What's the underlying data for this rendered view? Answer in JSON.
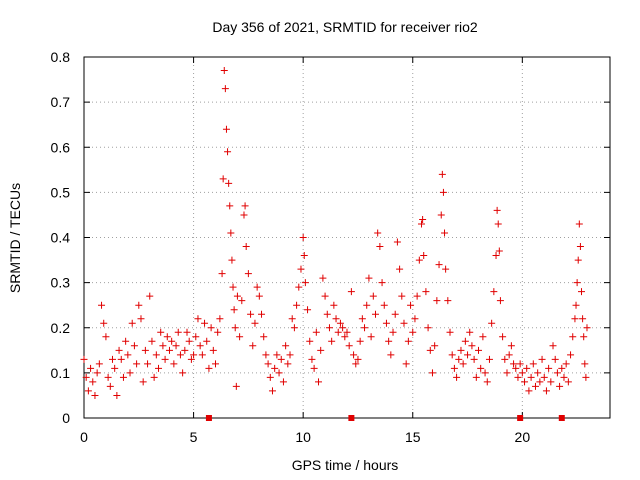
{
  "chart_data": {
    "type": "scatter",
    "title": "Day 356 of 2021, SRMTID for receiver rio2",
    "xlabel": "GPS time / hours",
    "ylabel": "SRMTID / TECUs",
    "xlim": [
      0,
      24
    ],
    "ylim": [
      0,
      0.8
    ],
    "xticks": [
      0,
      5,
      10,
      15,
      20
    ],
    "yticks": [
      0,
      0.1,
      0.2,
      0.3,
      0.4,
      0.5,
      0.6,
      0.7,
      0.8
    ],
    "grid": true,
    "marker": "+",
    "color": "#e00000",
    "series": [
      {
        "name": "SRMTID rio2",
        "points": [
          [
            0.0,
            0.13
          ],
          [
            0.1,
            0.09
          ],
          [
            0.2,
            0.06
          ],
          [
            0.3,
            0.11
          ],
          [
            0.4,
            0.08
          ],
          [
            0.5,
            0.05
          ],
          [
            0.6,
            0.1
          ],
          [
            0.7,
            0.12
          ],
          [
            0.8,
            0.25
          ],
          [
            0.9,
            0.21
          ],
          [
            1.0,
            0.18
          ],
          [
            1.1,
            0.09
          ],
          [
            1.2,
            0.07
          ],
          [
            1.3,
            0.13
          ],
          [
            1.4,
            0.11
          ],
          [
            1.5,
            0.05
          ],
          [
            1.6,
            0.15
          ],
          [
            1.7,
            0.13
          ],
          [
            1.8,
            0.09
          ],
          [
            1.9,
            0.17
          ],
          [
            2.0,
            0.14
          ],
          [
            2.1,
            0.1
          ],
          [
            2.2,
            0.21
          ],
          [
            2.3,
            0.16
          ],
          [
            2.4,
            0.12
          ],
          [
            2.5,
            0.25
          ],
          [
            2.6,
            0.22
          ],
          [
            2.7,
            0.08
          ],
          [
            2.8,
            0.15
          ],
          [
            2.9,
            0.12
          ],
          [
            3.0,
            0.27
          ],
          [
            3.1,
            0.17
          ],
          [
            3.2,
            0.09
          ],
          [
            3.3,
            0.14
          ],
          [
            3.4,
            0.11
          ],
          [
            3.5,
            0.19
          ],
          [
            3.6,
            0.16
          ],
          [
            3.7,
            0.13
          ],
          [
            3.8,
            0.18
          ],
          [
            3.9,
            0.15
          ],
          [
            4.0,
            0.17
          ],
          [
            4.1,
            0.12
          ],
          [
            4.2,
            0.16
          ],
          [
            4.3,
            0.19
          ],
          [
            4.4,
            0.14
          ],
          [
            4.5,
            0.1
          ],
          [
            4.6,
            0.15
          ],
          [
            4.7,
            0.19
          ],
          [
            4.8,
            0.17
          ],
          [
            4.9,
            0.13
          ],
          [
            5.0,
            0.14
          ],
          [
            5.1,
            0.18
          ],
          [
            5.2,
            0.22
          ],
          [
            5.3,
            0.16
          ],
          [
            5.4,
            0.14
          ],
          [
            5.5,
            0.21
          ],
          [
            5.6,
            0.17
          ],
          [
            5.7,
            0.11
          ],
          [
            5.8,
            0.2
          ],
          [
            5.9,
            0.15
          ],
          [
            6.0,
            0.12
          ],
          [
            6.1,
            0.19
          ],
          [
            6.2,
            0.22
          ],
          [
            6.3,
            0.32
          ],
          [
            6.35,
            0.53
          ],
          [
            6.4,
            0.77
          ],
          [
            6.45,
            0.73
          ],
          [
            6.5,
            0.64
          ],
          [
            6.55,
            0.59
          ],
          [
            6.6,
            0.52
          ],
          [
            6.65,
            0.47
          ],
          [
            6.7,
            0.41
          ],
          [
            6.75,
            0.35
          ],
          [
            6.8,
            0.29
          ],
          [
            6.85,
            0.24
          ],
          [
            6.9,
            0.2
          ],
          [
            6.95,
            0.07
          ],
          [
            7.0,
            0.27
          ],
          [
            7.1,
            0.18
          ],
          [
            7.2,
            0.26
          ],
          [
            7.3,
            0.45
          ],
          [
            7.35,
            0.47
          ],
          [
            7.4,
            0.38
          ],
          [
            7.5,
            0.32
          ],
          [
            7.6,
            0.23
          ],
          [
            7.7,
            0.16
          ],
          [
            7.8,
            0.21
          ],
          [
            7.9,
            0.29
          ],
          [
            8.0,
            0.27
          ],
          [
            8.1,
            0.23
          ],
          [
            8.2,
            0.18
          ],
          [
            8.3,
            0.14
          ],
          [
            8.4,
            0.12
          ],
          [
            8.5,
            0.09
          ],
          [
            8.6,
            0.06
          ],
          [
            8.7,
            0.11
          ],
          [
            8.8,
            0.14
          ],
          [
            8.9,
            0.1
          ],
          [
            9.0,
            0.13
          ],
          [
            9.1,
            0.08
          ],
          [
            9.2,
            0.16
          ],
          [
            9.3,
            0.12
          ],
          [
            9.4,
            0.14
          ],
          [
            9.5,
            0.22
          ],
          [
            9.6,
            0.2
          ],
          [
            9.7,
            0.25
          ],
          [
            9.8,
            0.29
          ],
          [
            9.9,
            0.33
          ],
          [
            10.0,
            0.4
          ],
          [
            10.05,
            0.36
          ],
          [
            10.1,
            0.3
          ],
          [
            10.2,
            0.24
          ],
          [
            10.3,
            0.17
          ],
          [
            10.4,
            0.13
          ],
          [
            10.5,
            0.11
          ],
          [
            10.6,
            0.19
          ],
          [
            10.7,
            0.08
          ],
          [
            10.8,
            0.15
          ],
          [
            10.9,
            0.31
          ],
          [
            11.0,
            0.27
          ],
          [
            11.1,
            0.23
          ],
          [
            11.2,
            0.2
          ],
          [
            11.3,
            0.17
          ],
          [
            11.4,
            0.25
          ],
          [
            11.5,
            0.22
          ],
          [
            11.6,
            0.19
          ],
          [
            11.7,
            0.21
          ],
          [
            11.8,
            0.2
          ],
          [
            11.9,
            0.18
          ],
          [
            12.0,
            0.19
          ],
          [
            12.1,
            0.16
          ],
          [
            12.2,
            0.28
          ],
          [
            12.3,
            0.14
          ],
          [
            12.4,
            0.12
          ],
          [
            12.5,
            0.13
          ],
          [
            12.6,
            0.17
          ],
          [
            12.7,
            0.22
          ],
          [
            12.8,
            0.2
          ],
          [
            12.9,
            0.25
          ],
          [
            13.0,
            0.31
          ],
          [
            13.1,
            0.18
          ],
          [
            13.2,
            0.27
          ],
          [
            13.3,
            0.23
          ],
          [
            13.4,
            0.41
          ],
          [
            13.5,
            0.38
          ],
          [
            13.6,
            0.3
          ],
          [
            13.7,
            0.25
          ],
          [
            13.8,
            0.21
          ],
          [
            13.9,
            0.17
          ],
          [
            14.0,
            0.14
          ],
          [
            14.1,
            0.19
          ],
          [
            14.2,
            0.23
          ],
          [
            14.3,
            0.39
          ],
          [
            14.4,
            0.33
          ],
          [
            14.5,
            0.27
          ],
          [
            14.6,
            0.21
          ],
          [
            14.7,
            0.12
          ],
          [
            14.8,
            0.17
          ],
          [
            14.9,
            0.25
          ],
          [
            15.0,
            0.19
          ],
          [
            15.1,
            0.22
          ],
          [
            15.2,
            0.27
          ],
          [
            15.3,
            0.35
          ],
          [
            15.4,
            0.43
          ],
          [
            15.45,
            0.44
          ],
          [
            15.5,
            0.36
          ],
          [
            15.6,
            0.28
          ],
          [
            15.7,
            0.2
          ],
          [
            15.8,
            0.15
          ],
          [
            15.9,
            0.1
          ],
          [
            16.0,
            0.16
          ],
          [
            16.1,
            0.26
          ],
          [
            16.2,
            0.34
          ],
          [
            16.3,
            0.45
          ],
          [
            16.35,
            0.54
          ],
          [
            16.4,
            0.5
          ],
          [
            16.45,
            0.41
          ],
          [
            16.5,
            0.33
          ],
          [
            16.6,
            0.26
          ],
          [
            16.7,
            0.19
          ],
          [
            16.8,
            0.14
          ],
          [
            16.9,
            0.11
          ],
          [
            17.0,
            0.09
          ],
          [
            17.1,
            0.13
          ],
          [
            17.2,
            0.15
          ],
          [
            17.3,
            0.12
          ],
          [
            17.4,
            0.17
          ],
          [
            17.5,
            0.14
          ],
          [
            17.6,
            0.19
          ],
          [
            17.7,
            0.16
          ],
          [
            17.8,
            0.13
          ],
          [
            17.9,
            0.09
          ],
          [
            18.0,
            0.15
          ],
          [
            18.1,
            0.11
          ],
          [
            18.2,
            0.18
          ],
          [
            18.3,
            0.1
          ],
          [
            18.4,
            0.08
          ],
          [
            18.5,
            0.13
          ],
          [
            18.6,
            0.21
          ],
          [
            18.7,
            0.28
          ],
          [
            18.8,
            0.36
          ],
          [
            18.85,
            0.46
          ],
          [
            18.9,
            0.43
          ],
          [
            18.95,
            0.37
          ],
          [
            19.0,
            0.26
          ],
          [
            19.1,
            0.18
          ],
          [
            19.2,
            0.13
          ],
          [
            19.3,
            0.1
          ],
          [
            19.4,
            0.14
          ],
          [
            19.5,
            0.16
          ],
          [
            19.6,
            0.12
          ],
          [
            19.7,
            0.11
          ],
          [
            19.8,
            0.09
          ],
          [
            19.9,
            0.12
          ],
          [
            20.0,
            0.1
          ],
          [
            20.1,
            0.08
          ],
          [
            20.2,
            0.11
          ],
          [
            20.3,
            0.06
          ],
          [
            20.4,
            0.09
          ],
          [
            20.5,
            0.12
          ],
          [
            20.6,
            0.07
          ],
          [
            20.7,
            0.1
          ],
          [
            20.8,
            0.08
          ],
          [
            20.9,
            0.13
          ],
          [
            21.0,
            0.09
          ],
          [
            21.1,
            0.06
          ],
          [
            21.2,
            0.11
          ],
          [
            21.3,
            0.08
          ],
          [
            21.4,
            0.16
          ],
          [
            21.5,
            0.13
          ],
          [
            21.6,
            0.1
          ],
          [
            21.7,
            0.07
          ],
          [
            21.8,
            0.11
          ],
          [
            21.9,
            0.09
          ],
          [
            22.0,
            0.12
          ],
          [
            22.1,
            0.08
          ],
          [
            22.2,
            0.14
          ],
          [
            22.3,
            0.18
          ],
          [
            22.4,
            0.22
          ],
          [
            22.45,
            0.25
          ],
          [
            22.5,
            0.3
          ],
          [
            22.55,
            0.35
          ],
          [
            22.6,
            0.43
          ],
          [
            22.65,
            0.38
          ],
          [
            22.7,
            0.28
          ],
          [
            22.75,
            0.22
          ],
          [
            22.8,
            0.18
          ],
          [
            22.85,
            0.12
          ],
          [
            22.9,
            0.09
          ],
          [
            22.95,
            0.2
          ]
        ]
      }
    ],
    "gap_markers_x": [
      5.7,
      12.2,
      19.9,
      21.8
    ]
  }
}
